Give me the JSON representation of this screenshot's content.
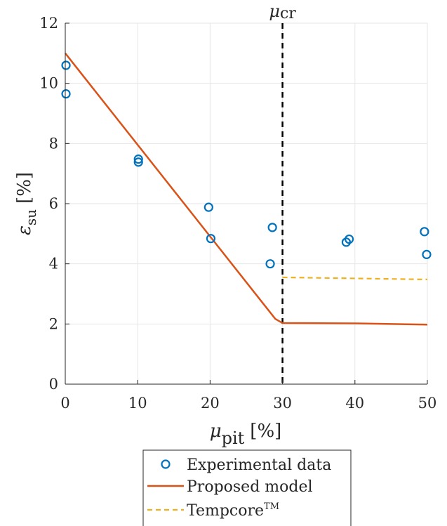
{
  "chart_data": {
    "type": "scatter",
    "xlabel": {
      "symbol": "μ",
      "subscript": "pit",
      "unit": "[%]"
    },
    "ylabel": {
      "symbol": "ε",
      "subscript": "su",
      "unit": "[%]"
    },
    "xlim": [
      0,
      50
    ],
    "ylim": [
      0,
      12
    ],
    "xticks": [
      "0",
      "10",
      "20",
      "30",
      "40",
      "50"
    ],
    "yticks": [
      "0",
      "2",
      "4",
      "6",
      "8",
      "10",
      "12"
    ],
    "grid": true,
    "legend_position": "bottom-outside",
    "annotation": {
      "symbol": "μ",
      "subscript": "cr",
      "x": 30
    },
    "series": [
      {
        "name": "Experimental data",
        "kind": "scatter",
        "color": "#0072BD",
        "points": [
          [
            0.1,
            10.6
          ],
          [
            0.1,
            9.65
          ],
          [
            10.1,
            7.48
          ],
          [
            10.1,
            7.38
          ],
          [
            19.8,
            5.88
          ],
          [
            20.1,
            4.84
          ],
          [
            28.3,
            4.0
          ],
          [
            28.6,
            5.21
          ],
          [
            38.8,
            4.72
          ],
          [
            39.2,
            4.82
          ],
          [
            49.6,
            5.07
          ],
          [
            49.9,
            4.31
          ]
        ]
      },
      {
        "name": "Proposed model",
        "kind": "line",
        "color": "#D95319",
        "points": [
          [
            0,
            11.0
          ],
          [
            29.0,
            2.17
          ],
          [
            30.0,
            2.03
          ],
          [
            40.0,
            2.02
          ],
          [
            50.0,
            1.98
          ]
        ]
      },
      {
        "name": "TempcoreTM",
        "legend": {
          "main": "Tempcore",
          "sup": "TM"
        },
        "kind": "dashed",
        "color": "#EDB120",
        "points": [
          [
            30.0,
            3.55
          ],
          [
            50.0,
            3.48
          ]
        ]
      }
    ],
    "reference_line": {
      "x": 30,
      "color": "#000000",
      "style": "dashed"
    }
  }
}
